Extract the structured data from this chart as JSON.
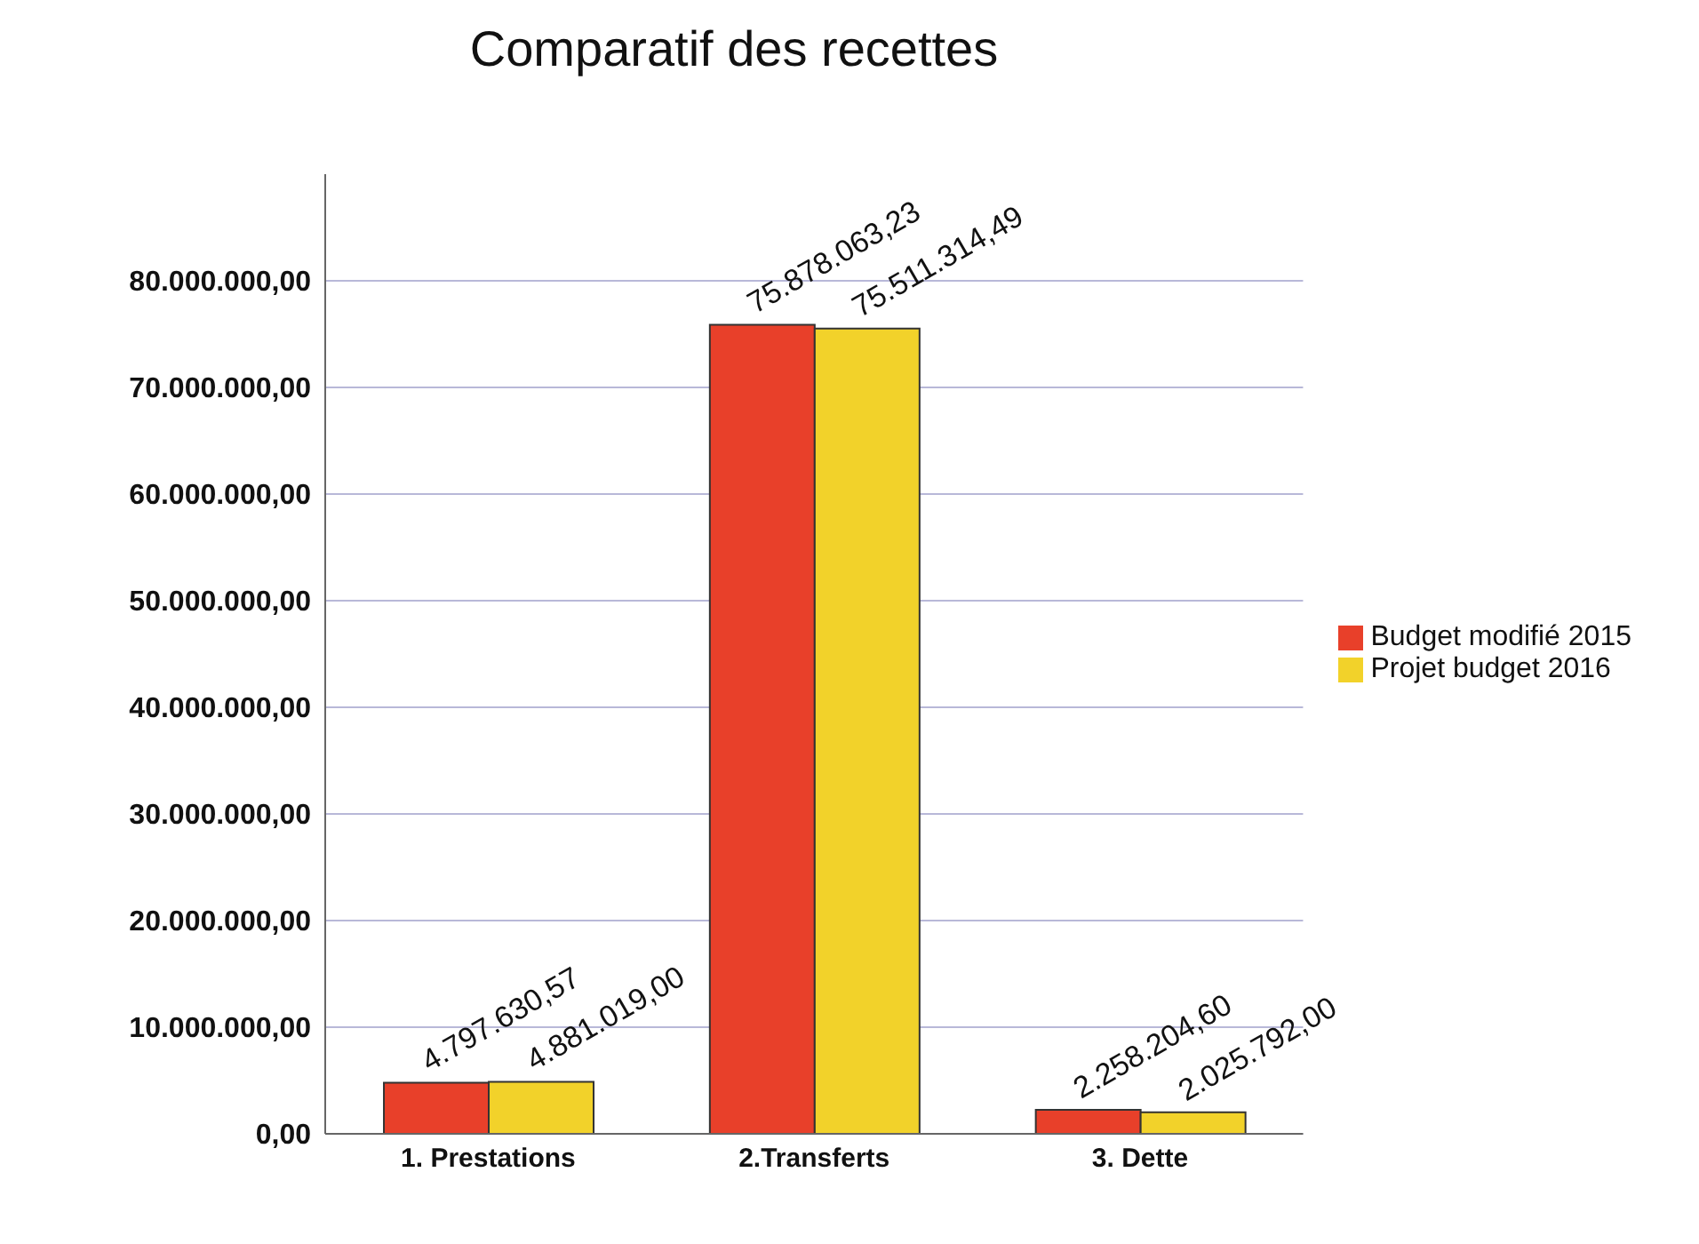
{
  "chart_data": {
    "type": "bar",
    "title": "Comparatif des recettes",
    "categories": [
      "1. Prestations",
      "2.Transferts",
      "3. Dette"
    ],
    "series": [
      {
        "name": "Budget modifié 2015",
        "color": "#e8402a",
        "values": [
          4797630.57,
          75878063.23,
          2258204.6
        ],
        "value_labels": [
          "4.797.630,57",
          "75.878.063,23",
          "2.258.204,60"
        ]
      },
      {
        "name": "Projet budget 2016",
        "color": "#f2d22a",
        "values": [
          4881019.0,
          75511314.49,
          2025792.0
        ],
        "value_labels": [
          "4.881.019,00",
          "75.511.314,49",
          "2.025.792,00"
        ]
      }
    ],
    "ylim": [
      0,
      90000000
    ],
    "yticks": [
      {
        "value": 0,
        "label": "0,00"
      },
      {
        "value": 10000000,
        "label": "10.000.000,00"
      },
      {
        "value": 20000000,
        "label": "20.000.000,00"
      },
      {
        "value": 30000000,
        "label": "30.000.000,00"
      },
      {
        "value": 40000000,
        "label": "40.000.000,00"
      },
      {
        "value": 50000000,
        "label": "50.000.000,00"
      },
      {
        "value": 60000000,
        "label": "60.000.000,00"
      },
      {
        "value": 70000000,
        "label": "70.000.000,00"
      },
      {
        "value": 80000000,
        "label": "80.000.000,00"
      }
    ],
    "grid": "y",
    "legend": "right"
  }
}
